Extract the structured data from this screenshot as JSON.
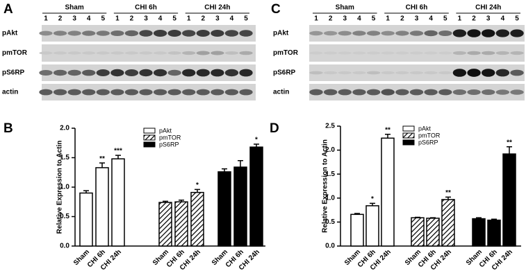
{
  "blots": [
    {
      "letter": "A",
      "groups": [
        "Sham",
        "CHI 6h",
        "CHI 24h"
      ],
      "lanes": [
        "1",
        "2",
        "3",
        "4",
        "5"
      ],
      "rows": [
        "pAkt",
        "pmTOR",
        "pS6RP",
        "actin"
      ]
    },
    {
      "letter": "C",
      "groups": [
        "Sham",
        "CHI 6h",
        "CHI 24h"
      ],
      "lanes": [
        "1",
        "2",
        "3",
        "4",
        "5"
      ],
      "rows": [
        "pAkt",
        "pmTOR",
        "pS6RP",
        "actin"
      ]
    }
  ],
  "chart_data": [
    {
      "type": "bar",
      "letter": "B",
      "ylabel": "Relative  Expression to Actin",
      "categories": [
        "Sham",
        "CHI 6h",
        "CHI 24h"
      ],
      "series": [
        {
          "name": "pAkt",
          "color": "#ffffff",
          "values": [
            0.9,
            1.33,
            1.48
          ],
          "errors": [
            0.04,
            0.08,
            0.06
          ],
          "significance": [
            null,
            "**",
            "***"
          ]
        },
        {
          "name": "pmTOR",
          "color": "#ffffff",
          "pattern": "hatch",
          "values": [
            0.74,
            0.75,
            0.91
          ],
          "errors": [
            0.02,
            0.03,
            0.05
          ],
          "significance": [
            null,
            null,
            "*"
          ]
        },
        {
          "name": "pS6RP",
          "color": "#000000",
          "values": [
            1.26,
            1.34,
            1.68
          ],
          "errors": [
            0.05,
            0.11,
            0.05
          ],
          "significance": [
            null,
            null,
            "*"
          ]
        }
      ],
      "ylim": [
        0,
        2.0
      ],
      "yticks": [
        {
          "value": 0,
          "label": "0.0"
        },
        {
          "value": 0.5,
          "label": "0.5"
        },
        {
          "value": 1.0,
          "label": "1.0"
        },
        {
          "value": 1.5,
          "label": "1.5"
        },
        {
          "value": 2.0,
          "label": "2.0"
        }
      ],
      "legend": "top"
    },
    {
      "type": "bar",
      "letter": "D",
      "ylabel": "Relative Expression to Actin",
      "categories": [
        "Sham",
        "CHI 6h",
        "CHI 24h"
      ],
      "series": [
        {
          "name": "pAkt",
          "color": "#ffffff",
          "values": [
            0.66,
            0.84,
            2.25
          ],
          "errors": [
            0.02,
            0.05,
            0.08
          ],
          "significance": [
            null,
            "*",
            "**"
          ]
        },
        {
          "name": "pmTOR",
          "color": "#ffffff",
          "pattern": "hatch",
          "values": [
            0.59,
            0.58,
            0.97
          ],
          "errors": [
            0.01,
            0.01,
            0.05
          ],
          "significance": [
            null,
            null,
            "**"
          ]
        },
        {
          "name": "pS6RP",
          "color": "#000000",
          "values": [
            0.57,
            0.54,
            1.92
          ],
          "errors": [
            0.02,
            0.02,
            0.15
          ],
          "significance": [
            null,
            null,
            "**"
          ]
        }
      ],
      "ylim": [
        0,
        2.5
      ],
      "yticks": [
        {
          "value": 0,
          "label": "0.0"
        },
        {
          "value": 0.5,
          "label": "0.5"
        },
        {
          "value": 1.0,
          "label": "1.0"
        },
        {
          "value": 1.5,
          "label": "1.5"
        },
        {
          "value": 2.0,
          "label": "2.0"
        },
        {
          "value": 2.5,
          "label": "2.5"
        }
      ],
      "legend": "top"
    }
  ]
}
